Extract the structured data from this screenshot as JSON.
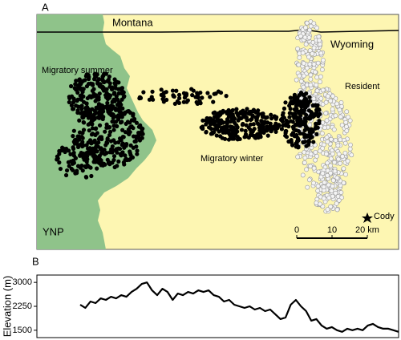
{
  "chart_data": [
    {
      "type": "map",
      "panel": "A",
      "labels": {
        "north": "Montana",
        "state": "Wyoming",
        "summer": "Migratory summer",
        "resident": "Resident",
        "winter": "Migratory winter",
        "park": "YNP",
        "town": "Cody"
      },
      "xlim": [
        0,
        20
      ],
      "xticks": [
        0,
        10,
        {
          "value": 20,
          "label": "20 km"
        }
      ]
    },
    {
      "type": "line",
      "panel": "B",
      "ylabel": "Elevation (m)",
      "ylim": [
        1270,
        3230
      ],
      "yticks": [
        1500,
        2250,
        3000
      ],
      "values": [
        2300,
        2200,
        2400,
        2350,
        2500,
        2450,
        2550,
        2500,
        2600,
        2550,
        2700,
        2800,
        2950,
        3000,
        2750,
        2600,
        2800,
        2700,
        2450,
        2650,
        2600,
        2700,
        2650,
        2750,
        2700,
        2750,
        2600,
        2550,
        2400,
        2450,
        2300,
        2250,
        2200,
        2250,
        2150,
        2200,
        2100,
        2150,
        2000,
        1850,
        1900,
        2300,
        2450,
        2250,
        2100,
        1800,
        1850,
        1650,
        1550,
        1600,
        1500,
        1450,
        1550,
        1500,
        1550,
        1500,
        1650,
        1700,
        1600,
        1550,
        1550,
        1500,
        1450
      ],
      "color": "#000000"
    }
  ]
}
